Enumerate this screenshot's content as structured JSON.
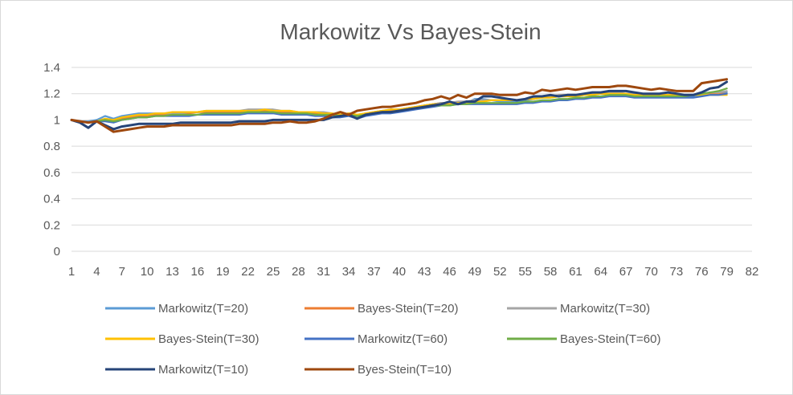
{
  "chart_data": {
    "type": "line",
    "title": "Markowitz Vs Bayes-Stein",
    "xlabel": "",
    "ylabel": "",
    "ylim": [
      0,
      1.4
    ],
    "yticks": [
      "0",
      "0.2",
      "0.4",
      "0.6",
      "0.8",
      "1",
      "1.2",
      "1.4"
    ],
    "xlim": [
      1,
      82
    ],
    "xticks": [
      "1",
      "4",
      "7",
      "10",
      "13",
      "16",
      "19",
      "22",
      "25",
      "28",
      "31",
      "34",
      "37",
      "40",
      "43",
      "46",
      "49",
      "52",
      "55",
      "58",
      "61",
      "64",
      "67",
      "70",
      "73",
      "76",
      "79",
      "82"
    ],
    "grid": true,
    "legend_position": "bottom",
    "x_start": 1,
    "series": [
      {
        "name": "Markowitz(T=20)",
        "color": "#5b9bd5",
        "values": [
          1.0,
          0.99,
          0.99,
          1.0,
          1.03,
          1.01,
          1.03,
          1.04,
          1.05,
          1.05,
          1.05,
          1.05,
          1.05,
          1.06,
          1.06,
          1.06,
          1.06,
          1.06,
          1.06,
          1.06,
          1.06,
          1.06,
          1.06,
          1.06,
          1.06,
          1.06,
          1.05,
          1.06,
          1.05,
          1.05,
          1.05,
          1.04,
          1.03,
          1.04,
          1.02,
          1.04,
          1.05,
          1.06,
          1.07,
          1.07,
          1.08,
          1.09,
          1.11,
          1.12,
          1.13,
          1.12,
          1.13,
          1.13,
          1.16,
          1.16,
          1.15,
          1.14,
          1.14,
          1.14,
          1.15,
          1.16,
          1.17,
          1.17,
          1.18,
          1.18,
          1.18,
          1.19,
          1.19,
          1.2,
          1.2,
          1.2,
          1.19,
          1.18,
          1.18,
          1.18,
          1.18,
          1.18,
          1.18,
          1.18,
          1.18,
          1.19,
          1.2,
          1.2,
          1.21
        ]
      },
      {
        "name": "Bayes-Stein(T=20)",
        "color": "#ed7d31",
        "values": [
          1.0,
          0.99,
          0.98,
          0.99,
          1.0,
          0.99,
          1.01,
          1.02,
          1.03,
          1.03,
          1.04,
          1.04,
          1.05,
          1.05,
          1.05,
          1.06,
          1.06,
          1.06,
          1.06,
          1.06,
          1.06,
          1.07,
          1.07,
          1.07,
          1.07,
          1.06,
          1.06,
          1.06,
          1.05,
          1.05,
          1.05,
          1.04,
          1.04,
          1.05,
          1.03,
          1.05,
          1.06,
          1.07,
          1.07,
          1.08,
          1.09,
          1.1,
          1.11,
          1.12,
          1.13,
          1.13,
          1.14,
          1.14,
          1.15,
          1.15,
          1.15,
          1.15,
          1.15,
          1.15,
          1.16,
          1.17,
          1.18,
          1.18,
          1.19,
          1.19,
          1.19,
          1.2,
          1.2,
          1.2,
          1.2,
          1.2,
          1.2,
          1.19,
          1.19,
          1.19,
          1.19,
          1.19,
          1.19,
          1.19,
          1.19,
          1.2,
          1.2,
          1.2,
          1.2
        ]
      },
      {
        "name": "Markowitz(T=30)",
        "color": "#a5a5a5",
        "values": [
          1.0,
          0.99,
          0.98,
          0.99,
          1.01,
          1.0,
          1.02,
          1.03,
          1.04,
          1.04,
          1.05,
          1.05,
          1.05,
          1.05,
          1.06,
          1.06,
          1.07,
          1.07,
          1.07,
          1.07,
          1.07,
          1.08,
          1.08,
          1.08,
          1.08,
          1.07,
          1.07,
          1.06,
          1.06,
          1.06,
          1.06,
          1.05,
          1.04,
          1.05,
          1.04,
          1.05,
          1.06,
          1.07,
          1.08,
          1.08,
          1.09,
          1.1,
          1.11,
          1.12,
          1.13,
          1.13,
          1.14,
          1.14,
          1.15,
          1.15,
          1.15,
          1.15,
          1.15,
          1.15,
          1.16,
          1.17,
          1.18,
          1.18,
          1.19,
          1.19,
          1.19,
          1.2,
          1.2,
          1.2,
          1.21,
          1.21,
          1.2,
          1.2,
          1.19,
          1.19,
          1.19,
          1.19,
          1.19,
          1.19,
          1.19,
          1.2,
          1.21,
          1.21,
          1.22
        ]
      },
      {
        "name": "Bayes-Stein(T=30)",
        "color": "#ffc000",
        "values": [
          1.0,
          0.99,
          0.98,
          0.99,
          1.01,
          1.0,
          1.02,
          1.03,
          1.04,
          1.04,
          1.05,
          1.05,
          1.06,
          1.06,
          1.06,
          1.06,
          1.07,
          1.07,
          1.07,
          1.07,
          1.07,
          1.07,
          1.07,
          1.08,
          1.07,
          1.07,
          1.07,
          1.06,
          1.06,
          1.06,
          1.05,
          1.05,
          1.04,
          1.05,
          1.04,
          1.05,
          1.06,
          1.07,
          1.08,
          1.08,
          1.09,
          1.1,
          1.11,
          1.12,
          1.12,
          1.12,
          1.13,
          1.13,
          1.14,
          1.14,
          1.15,
          1.15,
          1.15,
          1.15,
          1.16,
          1.16,
          1.17,
          1.17,
          1.18,
          1.18,
          1.18,
          1.19,
          1.19,
          1.2,
          1.2,
          1.2,
          1.2,
          1.19,
          1.19,
          1.19,
          1.19,
          1.19,
          1.19,
          1.19,
          1.19,
          1.19,
          1.19,
          1.19,
          1.19
        ]
      },
      {
        "name": "Markowitz(T=60)",
        "color": "#4472c4",
        "values": [
          1.0,
          0.99,
          0.98,
          0.99,
          0.99,
          0.98,
          1.0,
          1.01,
          1.02,
          1.02,
          1.03,
          1.03,
          1.03,
          1.03,
          1.03,
          1.04,
          1.04,
          1.04,
          1.04,
          1.04,
          1.04,
          1.05,
          1.05,
          1.05,
          1.05,
          1.04,
          1.04,
          1.04,
          1.04,
          1.03,
          1.03,
          1.02,
          1.02,
          1.03,
          1.01,
          1.03,
          1.04,
          1.05,
          1.05,
          1.06,
          1.07,
          1.08,
          1.09,
          1.1,
          1.11,
          1.11,
          1.12,
          1.12,
          1.12,
          1.12,
          1.12,
          1.12,
          1.12,
          1.12,
          1.13,
          1.13,
          1.14,
          1.14,
          1.15,
          1.15,
          1.16,
          1.16,
          1.17,
          1.17,
          1.18,
          1.18,
          1.18,
          1.17,
          1.17,
          1.17,
          1.17,
          1.17,
          1.17,
          1.17,
          1.17,
          1.18,
          1.19,
          1.19,
          1.2
        ]
      },
      {
        "name": "Bayes-Stein(T=60)",
        "color": "#70ad47",
        "values": [
          1.0,
          0.99,
          0.98,
          0.99,
          1.0,
          0.99,
          1.0,
          1.01,
          1.02,
          1.02,
          1.03,
          1.03,
          1.04,
          1.04,
          1.04,
          1.04,
          1.05,
          1.05,
          1.05,
          1.05,
          1.05,
          1.06,
          1.06,
          1.06,
          1.06,
          1.05,
          1.05,
          1.05,
          1.05,
          1.04,
          1.04,
          1.04,
          1.03,
          1.04,
          1.03,
          1.04,
          1.05,
          1.06,
          1.06,
          1.07,
          1.08,
          1.09,
          1.1,
          1.11,
          1.11,
          1.11,
          1.12,
          1.12,
          1.13,
          1.13,
          1.13,
          1.13,
          1.13,
          1.13,
          1.14,
          1.14,
          1.15,
          1.15,
          1.16,
          1.16,
          1.17,
          1.17,
          1.18,
          1.18,
          1.19,
          1.19,
          1.19,
          1.18,
          1.18,
          1.18,
          1.18,
          1.18,
          1.18,
          1.18,
          1.19,
          1.2,
          1.21,
          1.22,
          1.24
        ]
      },
      {
        "name": "Markowitz(T=10)",
        "color": "#264478",
        "values": [
          1.0,
          0.98,
          0.94,
          0.99,
          0.96,
          0.93,
          0.95,
          0.96,
          0.97,
          0.97,
          0.97,
          0.97,
          0.97,
          0.98,
          0.98,
          0.98,
          0.98,
          0.98,
          0.98,
          0.98,
          0.99,
          0.99,
          0.99,
          0.99,
          1.0,
          1.0,
          1.0,
          1.0,
          1.0,
          1.0,
          1.0,
          1.02,
          1.03,
          1.04,
          1.01,
          1.04,
          1.05,
          1.06,
          1.06,
          1.07,
          1.08,
          1.09,
          1.1,
          1.11,
          1.12,
          1.14,
          1.12,
          1.14,
          1.14,
          1.18,
          1.18,
          1.17,
          1.16,
          1.15,
          1.16,
          1.18,
          1.18,
          1.19,
          1.18,
          1.19,
          1.19,
          1.2,
          1.21,
          1.21,
          1.22,
          1.22,
          1.22,
          1.21,
          1.2,
          1.2,
          1.2,
          1.21,
          1.2,
          1.19,
          1.19,
          1.21,
          1.24,
          1.25,
          1.29
        ]
      },
      {
        "name": "Byes-Stein(T=10)",
        "color": "#9e480e",
        "values": [
          1.0,
          0.99,
          0.98,
          0.99,
          0.95,
          0.91,
          0.92,
          0.93,
          0.94,
          0.95,
          0.95,
          0.95,
          0.96,
          0.96,
          0.96,
          0.96,
          0.96,
          0.96,
          0.96,
          0.96,
          0.97,
          0.97,
          0.97,
          0.97,
          0.98,
          0.98,
          0.99,
          0.98,
          0.98,
          0.99,
          1.01,
          1.04,
          1.06,
          1.04,
          1.07,
          1.08,
          1.09,
          1.1,
          1.1,
          1.11,
          1.12,
          1.13,
          1.15,
          1.16,
          1.18,
          1.16,
          1.19,
          1.17,
          1.2,
          1.2,
          1.2,
          1.19,
          1.19,
          1.19,
          1.21,
          1.2,
          1.23,
          1.22,
          1.23,
          1.24,
          1.23,
          1.24,
          1.25,
          1.25,
          1.25,
          1.26,
          1.26,
          1.25,
          1.24,
          1.23,
          1.24,
          1.23,
          1.22,
          1.22,
          1.22,
          1.28,
          1.29,
          1.3,
          1.31
        ]
      }
    ]
  }
}
